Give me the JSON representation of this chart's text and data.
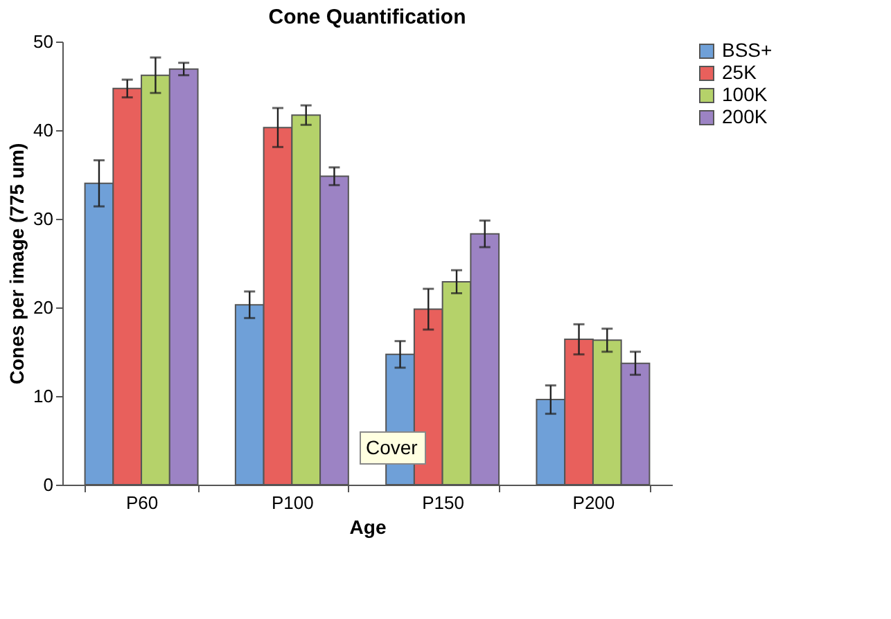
{
  "chart_data": {
    "type": "bar",
    "title": "Cone Quantification",
    "xlabel": "Age",
    "ylabel": "Cones per image (775 um)",
    "categories": [
      "P60",
      "P100",
      "P150",
      "P200"
    ],
    "series": [
      {
        "name": "BSS+",
        "color": "#6fa0d8",
        "values": [
          34,
          20.3,
          14.7,
          9.6
        ],
        "errors": [
          2.6,
          1.5,
          1.5,
          1.6
        ]
      },
      {
        "name": "25K",
        "color": "#e8605c",
        "values": [
          44.7,
          40.3,
          19.8,
          16.4
        ],
        "errors": [
          1,
          2.2,
          2.3,
          1.7
        ]
      },
      {
        "name": "100K",
        "color": "#b5d26a",
        "values": [
          46.2,
          41.7,
          22.9,
          16.3
        ],
        "errors": [
          2,
          1.1,
          1.3,
          1.3
        ]
      },
      {
        "name": "200K",
        "color": "#9c83c4",
        "values": [
          46.9,
          34.8,
          28.3,
          13.7
        ],
        "errors": [
          0.7,
          1,
          1.5,
          1.3
        ]
      }
    ],
    "ylim": [
      0,
      50
    ],
    "yticks": [
      0,
      10,
      20,
      30,
      40,
      50
    ],
    "grid": false,
    "legend": "right",
    "annotations": [
      "Cover"
    ]
  }
}
